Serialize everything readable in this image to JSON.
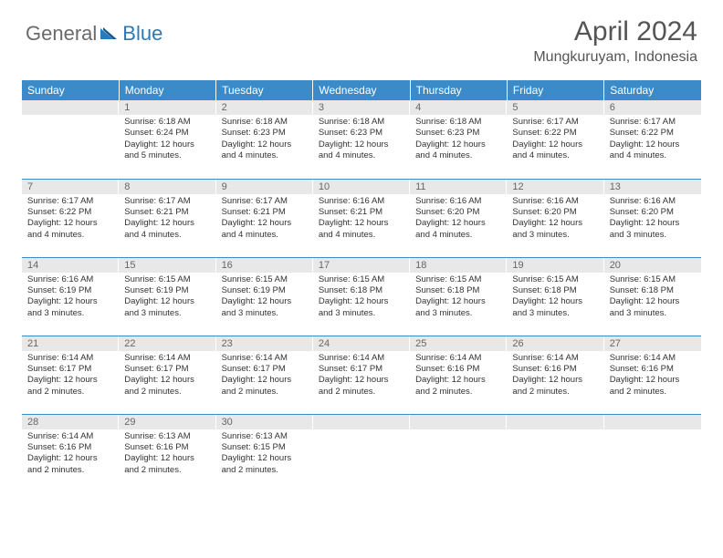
{
  "logo": {
    "part1": "General",
    "part2": "Blue"
  },
  "title": "April 2024",
  "location": "Mungkuruyam, Indonesia",
  "colors": {
    "header_bg": "#3b8bc8",
    "header_text": "#ffffff",
    "daynum_bg": "#e8e8e8",
    "daynum_text": "#666666",
    "body_text": "#333333",
    "row_border": "#3b8bc8",
    "logo_gray": "#6a6a6a",
    "logo_blue": "#2a7ab8"
  },
  "weekdays": [
    "Sunday",
    "Monday",
    "Tuesday",
    "Wednesday",
    "Thursday",
    "Friday",
    "Saturday"
  ],
  "weeks": [
    [
      {
        "day": "",
        "text": ""
      },
      {
        "day": "1",
        "text": "Sunrise: 6:18 AM\nSunset: 6:24 PM\nDaylight: 12 hours and 5 minutes."
      },
      {
        "day": "2",
        "text": "Sunrise: 6:18 AM\nSunset: 6:23 PM\nDaylight: 12 hours and 4 minutes."
      },
      {
        "day": "3",
        "text": "Sunrise: 6:18 AM\nSunset: 6:23 PM\nDaylight: 12 hours and 4 minutes."
      },
      {
        "day": "4",
        "text": "Sunrise: 6:18 AM\nSunset: 6:23 PM\nDaylight: 12 hours and 4 minutes."
      },
      {
        "day": "5",
        "text": "Sunrise: 6:17 AM\nSunset: 6:22 PM\nDaylight: 12 hours and 4 minutes."
      },
      {
        "day": "6",
        "text": "Sunrise: 6:17 AM\nSunset: 6:22 PM\nDaylight: 12 hours and 4 minutes."
      }
    ],
    [
      {
        "day": "7",
        "text": "Sunrise: 6:17 AM\nSunset: 6:22 PM\nDaylight: 12 hours and 4 minutes."
      },
      {
        "day": "8",
        "text": "Sunrise: 6:17 AM\nSunset: 6:21 PM\nDaylight: 12 hours and 4 minutes."
      },
      {
        "day": "9",
        "text": "Sunrise: 6:17 AM\nSunset: 6:21 PM\nDaylight: 12 hours and 4 minutes."
      },
      {
        "day": "10",
        "text": "Sunrise: 6:16 AM\nSunset: 6:21 PM\nDaylight: 12 hours and 4 minutes."
      },
      {
        "day": "11",
        "text": "Sunrise: 6:16 AM\nSunset: 6:20 PM\nDaylight: 12 hours and 4 minutes."
      },
      {
        "day": "12",
        "text": "Sunrise: 6:16 AM\nSunset: 6:20 PM\nDaylight: 12 hours and 3 minutes."
      },
      {
        "day": "13",
        "text": "Sunrise: 6:16 AM\nSunset: 6:20 PM\nDaylight: 12 hours and 3 minutes."
      }
    ],
    [
      {
        "day": "14",
        "text": "Sunrise: 6:16 AM\nSunset: 6:19 PM\nDaylight: 12 hours and 3 minutes."
      },
      {
        "day": "15",
        "text": "Sunrise: 6:15 AM\nSunset: 6:19 PM\nDaylight: 12 hours and 3 minutes."
      },
      {
        "day": "16",
        "text": "Sunrise: 6:15 AM\nSunset: 6:19 PM\nDaylight: 12 hours and 3 minutes."
      },
      {
        "day": "17",
        "text": "Sunrise: 6:15 AM\nSunset: 6:18 PM\nDaylight: 12 hours and 3 minutes."
      },
      {
        "day": "18",
        "text": "Sunrise: 6:15 AM\nSunset: 6:18 PM\nDaylight: 12 hours and 3 minutes."
      },
      {
        "day": "19",
        "text": "Sunrise: 6:15 AM\nSunset: 6:18 PM\nDaylight: 12 hours and 3 minutes."
      },
      {
        "day": "20",
        "text": "Sunrise: 6:15 AM\nSunset: 6:18 PM\nDaylight: 12 hours and 3 minutes."
      }
    ],
    [
      {
        "day": "21",
        "text": "Sunrise: 6:14 AM\nSunset: 6:17 PM\nDaylight: 12 hours and 2 minutes."
      },
      {
        "day": "22",
        "text": "Sunrise: 6:14 AM\nSunset: 6:17 PM\nDaylight: 12 hours and 2 minutes."
      },
      {
        "day": "23",
        "text": "Sunrise: 6:14 AM\nSunset: 6:17 PM\nDaylight: 12 hours and 2 minutes."
      },
      {
        "day": "24",
        "text": "Sunrise: 6:14 AM\nSunset: 6:17 PM\nDaylight: 12 hours and 2 minutes."
      },
      {
        "day": "25",
        "text": "Sunrise: 6:14 AM\nSunset: 6:16 PM\nDaylight: 12 hours and 2 minutes."
      },
      {
        "day": "26",
        "text": "Sunrise: 6:14 AM\nSunset: 6:16 PM\nDaylight: 12 hours and 2 minutes."
      },
      {
        "day": "27",
        "text": "Sunrise: 6:14 AM\nSunset: 6:16 PM\nDaylight: 12 hours and 2 minutes."
      }
    ],
    [
      {
        "day": "28",
        "text": "Sunrise: 6:14 AM\nSunset: 6:16 PM\nDaylight: 12 hours and 2 minutes."
      },
      {
        "day": "29",
        "text": "Sunrise: 6:13 AM\nSunset: 6:16 PM\nDaylight: 12 hours and 2 minutes."
      },
      {
        "day": "30",
        "text": "Sunrise: 6:13 AM\nSunset: 6:15 PM\nDaylight: 12 hours and 2 minutes."
      },
      {
        "day": "",
        "text": ""
      },
      {
        "day": "",
        "text": ""
      },
      {
        "day": "",
        "text": ""
      },
      {
        "day": "",
        "text": ""
      }
    ]
  ]
}
